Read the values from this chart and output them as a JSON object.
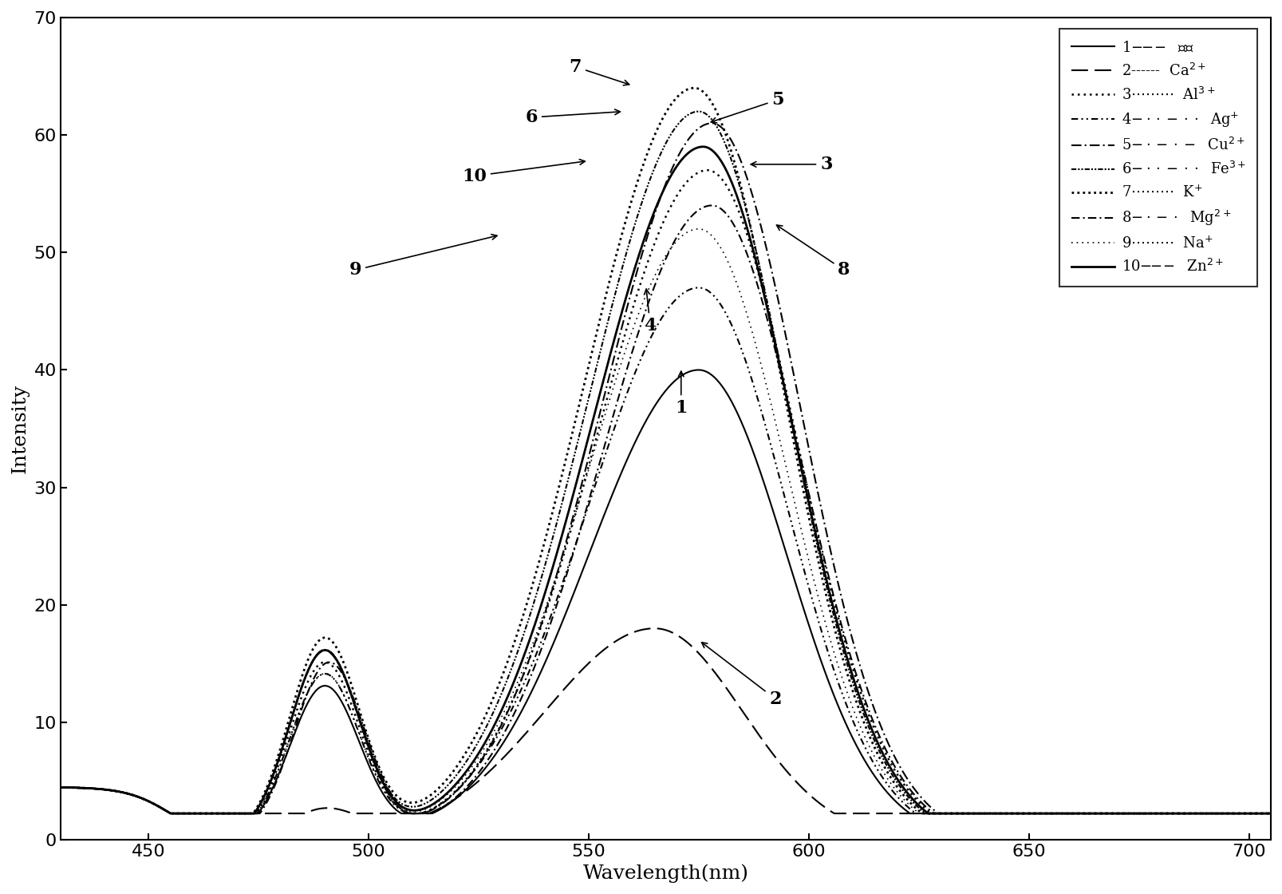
{
  "xlim": [
    430,
    705
  ],
  "ylim": [
    0,
    70
  ],
  "xticks": [
    450,
    500,
    550,
    600,
    650,
    700
  ],
  "yticks": [
    0,
    10,
    20,
    30,
    40,
    50,
    60,
    70
  ],
  "xlabel": "Wavelength(nm)",
  "ylabel": "Intensity",
  "background": "#ffffff",
  "line_color": "#000000",
  "series": [
    {
      "id": 1,
      "peak": 40,
      "peak_wl": 575,
      "sec": 13,
      "sec_wl": 490,
      "lw": 1.5,
      "ls": "solid"
    },
    {
      "id": 2,
      "peak": 18,
      "peak_wl": 565,
      "sec": 2.5,
      "sec_wl": 490,
      "lw": 1.5,
      "ls": "dashed_long"
    },
    {
      "id": 3,
      "peak": 57,
      "peak_wl": 577,
      "sec": 15,
      "sec_wl": 490,
      "lw": 1.5,
      "ls": "dotted"
    },
    {
      "id": 4,
      "peak": 47,
      "peak_wl": 575,
      "sec": 14,
      "sec_wl": 490,
      "lw": 1.5,
      "ls": "dash_dot_dot"
    },
    {
      "id": 5,
      "peak": 61,
      "peak_wl": 578,
      "sec": 16,
      "sec_wl": 490,
      "lw": 1.5,
      "ls": "dashdot"
    },
    {
      "id": 6,
      "peak": 62,
      "peak_wl": 575,
      "sec": 16,
      "sec_wl": 490,
      "lw": 1.5,
      "ls": "dash_dot_dot2"
    },
    {
      "id": 7,
      "peak": 64,
      "peak_wl": 574,
      "sec": 17,
      "sec_wl": 490,
      "lw": 1.8,
      "ls": "dotted2"
    },
    {
      "id": 8,
      "peak": 54,
      "peak_wl": 578,
      "sec": 15,
      "sec_wl": 491,
      "lw": 1.5,
      "ls": "dashdot2"
    },
    {
      "id": 9,
      "peak": 52,
      "peak_wl": 575,
      "sec": 14,
      "sec_wl": 490,
      "lw": 1.2,
      "ls": "dotted3"
    },
    {
      "id": 10,
      "peak": 59,
      "peak_wl": 576,
      "sec": 16,
      "sec_wl": 490,
      "lw": 1.8,
      "ls": "solid2"
    }
  ]
}
